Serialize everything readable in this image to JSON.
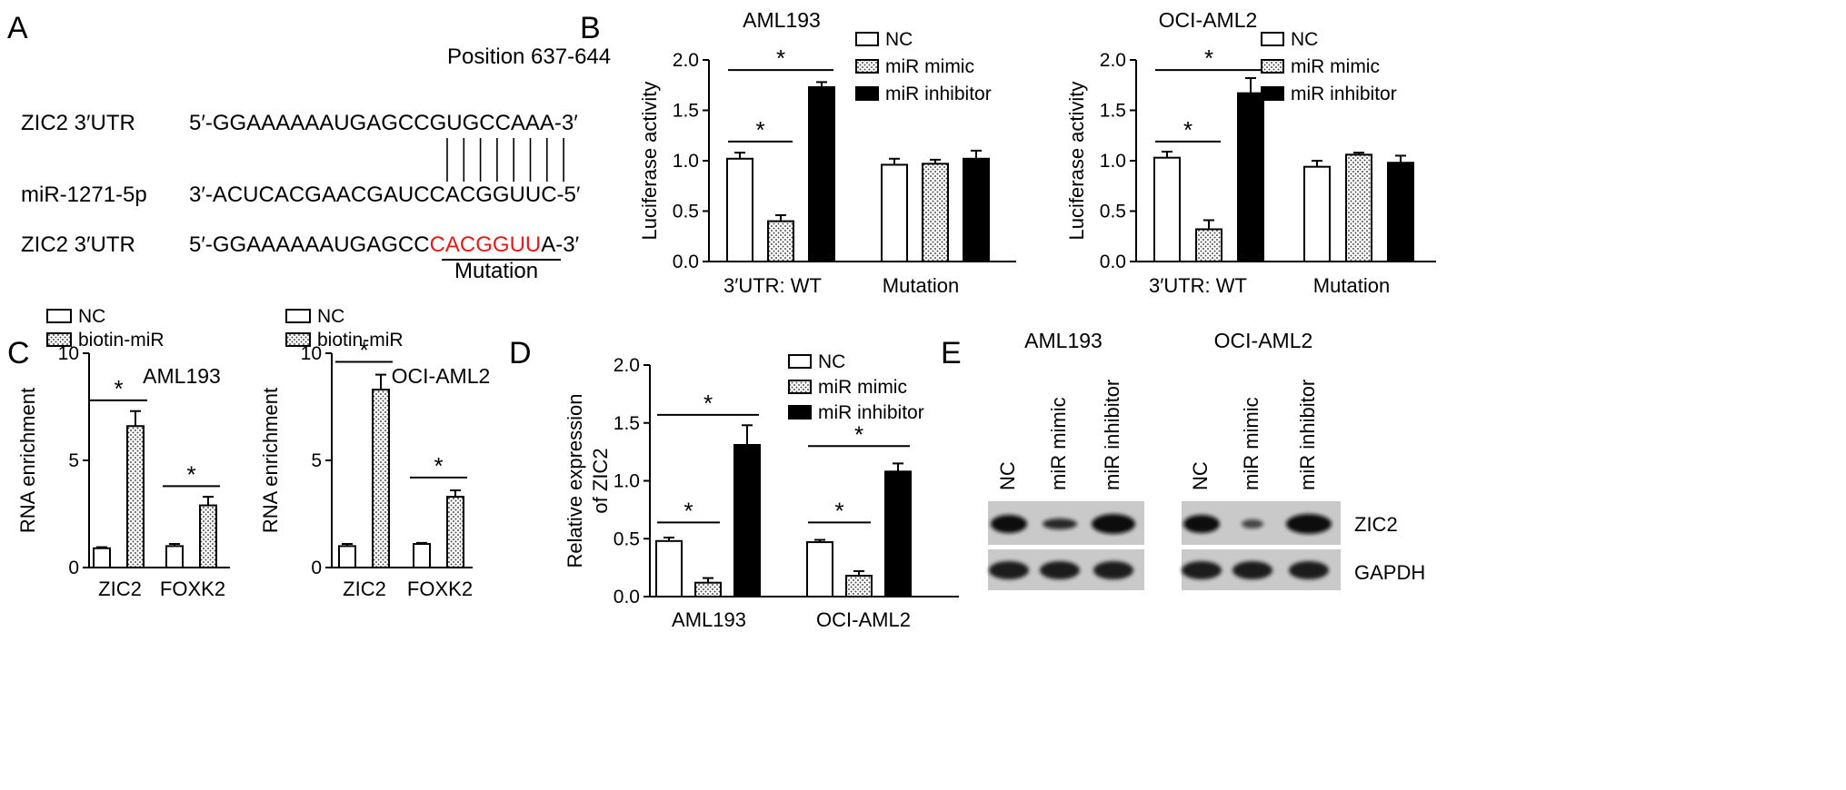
{
  "panel_labels": [
    "A",
    "B",
    "C",
    "D",
    "E"
  ],
  "panelA": {
    "position_label": "Position 637-644",
    "row1_label": "ZIC2 3′UTR",
    "row1_seq": "5′-GGAAAAAAUGAGCCGUGCCAAA-3′",
    "row2_label": "miR-1271-5p",
    "row2_seq": "3′-ACUCACGAACGAUCCACGGUUC-5′",
    "row3_label": "ZIC2 3′UTR",
    "row3_seq_prefix": "5′-GGAAAAAAUGAGCC",
    "row3_seq_mut": "CACGGUU",
    "row3_seq_suffix": "A-3′",
    "mutation_label": "Mutation",
    "mutation_color": "#e31a1c"
  },
  "western_blot": {
    "cell_lines": [
      "AML193",
      "OCI-AML2"
    ],
    "lanes": [
      "NC",
      "miR mimic",
      "miR inhibitor"
    ],
    "proteins": [
      "ZIC2",
      "GAPDH"
    ]
  },
  "chart_data": [
    {
      "id": "B1",
      "type": "bar",
      "title": "AML193",
      "ylabel": "Luciferase activity",
      "ylim": [
        0,
        2.0
      ],
      "yticks": [
        "0.0",
        "0.5",
        "1.0",
        "1.5",
        "2.0"
      ],
      "categories": [
        "3′UTR: WT",
        "Mutation"
      ],
      "legend": "top-right",
      "series": [
        {
          "name": "NC",
          "values": [
            1.02,
            0.96
          ],
          "errors": [
            0.06,
            0.06
          ]
        },
        {
          "name": "miR mimic",
          "values": [
            0.4,
            0.97
          ],
          "errors": [
            0.06,
            0.04
          ]
        },
        {
          "name": "miR inhibitor",
          "values": [
            1.73,
            1.02
          ],
          "errors": [
            0.05,
            0.08
          ]
        }
      ],
      "significance": [
        {
          "cat": 0,
          "from": 0,
          "to": 1,
          "y": 1.19,
          "label": "*"
        },
        {
          "cat": 0,
          "from": 0,
          "to": 2,
          "y": 1.9,
          "label": "*"
        }
      ]
    },
    {
      "id": "B2",
      "type": "bar",
      "title": "OCI-AML2",
      "ylabel": "Luciferase activity",
      "ylim": [
        0,
        2.0
      ],
      "yticks": [
        "0.0",
        "0.5",
        "1.0",
        "1.5",
        "2.0"
      ],
      "categories": [
        "3′UTR: WT",
        "Mutation"
      ],
      "legend": "top-right",
      "series": [
        {
          "name": "NC",
          "values": [
            1.03,
            0.94
          ],
          "errors": [
            0.06,
            0.06
          ]
        },
        {
          "name": "miR mimic",
          "values": [
            0.32,
            1.06
          ],
          "errors": [
            0.09,
            0.02
          ]
        },
        {
          "name": "miR inhibitor",
          "values": [
            1.67,
            0.98
          ],
          "errors": [
            0.15,
            0.07
          ]
        }
      ],
      "significance": [
        {
          "cat": 0,
          "from": 0,
          "to": 1,
          "y": 1.19,
          "label": "*"
        },
        {
          "cat": 0,
          "from": 0,
          "to": 2,
          "y": 1.9,
          "label": "*"
        }
      ]
    },
    {
      "id": "C1",
      "type": "bar",
      "title": "AML193",
      "ylabel": "RNA enrichment",
      "ylim": [
        0,
        10
      ],
      "yticks": [
        "0",
        "5",
        "10"
      ],
      "categories": [
        "ZIC2",
        "FOXK2"
      ],
      "legend": "top-left",
      "series": [
        {
          "name": "NC",
          "values": [
            0.9,
            1.0
          ],
          "errors": [
            0.05,
            0.1
          ]
        },
        {
          "name": "biotin-miR",
          "values": [
            6.6,
            2.9
          ],
          "errors": [
            0.7,
            0.4
          ]
        }
      ],
      "significance": [
        {
          "cat": 0,
          "from": 0,
          "to": 1,
          "y": 7.8,
          "label": "*"
        },
        {
          "cat": 1,
          "from": 0,
          "to": 1,
          "y": 3.8,
          "label": "*"
        }
      ]
    },
    {
      "id": "C2",
      "type": "bar",
      "title": "OCI-AML2",
      "ylabel": "RNA enrichment",
      "ylim": [
        0,
        10
      ],
      "yticks": [
        "0",
        "5",
        "10"
      ],
      "categories": [
        "ZIC2",
        "FOXK2"
      ],
      "legend": "top-left",
      "series": [
        {
          "name": "NC",
          "values": [
            1.0,
            1.1
          ],
          "errors": [
            0.1,
            0.05
          ]
        },
        {
          "name": "biotin-miR",
          "values": [
            8.3,
            3.3
          ],
          "errors": [
            0.7,
            0.3
          ]
        }
      ],
      "significance": [
        {
          "cat": 0,
          "from": 0,
          "to": 1,
          "y": 9.6,
          "label": "*"
        },
        {
          "cat": 1,
          "from": 0,
          "to": 1,
          "y": 4.2,
          "label": "*"
        }
      ]
    },
    {
      "id": "D",
      "type": "bar",
      "title": "",
      "ylabel": "Relative expression of ZIC2",
      "ylabel_lines": [
        "Relative expression",
        "of ZIC2"
      ],
      "ylim": [
        0,
        2.0
      ],
      "yticks": [
        "0.0",
        "0.5",
        "1.0",
        "1.5",
        "2.0"
      ],
      "categories": [
        "AML193",
        "OCI-AML2"
      ],
      "legend": "top-right",
      "series": [
        {
          "name": "NC",
          "values": [
            0.48,
            0.47
          ],
          "errors": [
            0.03,
            0.02
          ]
        },
        {
          "name": "miR mimic",
          "values": [
            0.12,
            0.18
          ],
          "errors": [
            0.04,
            0.04
          ]
        },
        {
          "name": "miR inhibitor",
          "values": [
            1.31,
            1.08
          ],
          "errors": [
            0.17,
            0.07
          ]
        }
      ],
      "significance": [
        {
          "cat": 0,
          "from": 0,
          "to": 1,
          "y": 0.64,
          "label": "*"
        },
        {
          "cat": 0,
          "from": 0,
          "to": 2,
          "y": 1.57,
          "label": "*"
        },
        {
          "cat": 1,
          "from": 0,
          "to": 1,
          "y": 0.64,
          "label": "*"
        },
        {
          "cat": 1,
          "from": 0,
          "to": 2,
          "y": 1.3,
          "label": "*"
        }
      ]
    }
  ]
}
